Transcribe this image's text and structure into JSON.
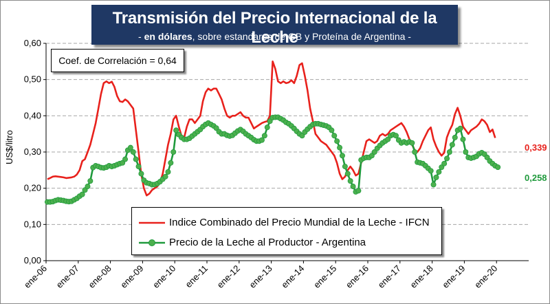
{
  "header": {
    "title": "Transmisión del Precio Internacional de la Leche",
    "subtitle_prefix": "- ",
    "subtitle_bold": "en dólares",
    "subtitle_rest": ", sobre estandares de GB y Proteína de  Argentina -"
  },
  "correlation_label": "Coef. de Correlación = 0,64",
  "colors": {
    "ifcn": "#e8211c",
    "argentina": "#1f9a3c",
    "argentina_marker": "#4cb04e",
    "title_bg": "#1f3864",
    "grid": "#a6a6a6"
  },
  "chart_data": {
    "type": "line",
    "title": "Transmisión del Precio Internacional de la Leche",
    "subtitle": "- en dólares, sobre estandares de GB y Proteína de  Argentina -",
    "xlabel": "",
    "ylabel": "US$/litro",
    "ylim": [
      0,
      0.6
    ],
    "yticks": [
      "0,00",
      "0,10",
      "0,20",
      "0,30",
      "0,40",
      "0,50",
      "0,60"
    ],
    "grid": true,
    "legend_position": "bottom-center",
    "x_start": "2006-01",
    "x_step": "monthly",
    "x_tick_labels": [
      "ene-06",
      "ene-07",
      "ene-08",
      "ene-09",
      "ene-10",
      "ene-11",
      "ene-12",
      "ene-13",
      "ene-14",
      "ene-15",
      "ene-16",
      "ene-17",
      "ene-18",
      "ene-19",
      "ene-20"
    ],
    "series": [
      {
        "name": "Indice Combinado del Precio Mundial de la Leche - IFCN",
        "color": "#e8211c",
        "marker": "none",
        "end_label": "0,339",
        "values": [
          0.225,
          0.228,
          0.232,
          0.233,
          0.232,
          0.231,
          0.23,
          0.228,
          0.229,
          0.23,
          0.232,
          0.238,
          0.25,
          0.275,
          0.28,
          0.3,
          0.32,
          0.35,
          0.38,
          0.42,
          0.46,
          0.49,
          0.495,
          0.49,
          0.494,
          0.48,
          0.455,
          0.44,
          0.438,
          0.445,
          0.44,
          0.43,
          0.42,
          0.36,
          0.3,
          0.24,
          0.2,
          0.18,
          0.185,
          0.195,
          0.2,
          0.205,
          0.215,
          0.24,
          0.28,
          0.32,
          0.35,
          0.39,
          0.4,
          0.37,
          0.345,
          0.34,
          0.37,
          0.39,
          0.39,
          0.38,
          0.39,
          0.4,
          0.44,
          0.465,
          0.475,
          0.47,
          0.475,
          0.475,
          0.46,
          0.445,
          0.42,
          0.4,
          0.395,
          0.4,
          0.4,
          0.405,
          0.41,
          0.4,
          0.395,
          0.395,
          0.38,
          0.365,
          0.37,
          0.375,
          0.38,
          0.383,
          0.385,
          0.4,
          0.55,
          0.53,
          0.495,
          0.49,
          0.495,
          0.49,
          0.492,
          0.498,
          0.49,
          0.51,
          0.54,
          0.545,
          0.51,
          0.47,
          0.42,
          0.385,
          0.35,
          0.34,
          0.33,
          0.325,
          0.32,
          0.31,
          0.3,
          0.29,
          0.27,
          0.24,
          0.225,
          0.232,
          0.25,
          0.26,
          0.25,
          0.235,
          0.24,
          0.27,
          0.3,
          0.33,
          0.335,
          0.33,
          0.325,
          0.33,
          0.345,
          0.35,
          0.345,
          0.35,
          0.36,
          0.365,
          0.37,
          0.375,
          0.38,
          0.37,
          0.355,
          0.335,
          0.32,
          0.305,
          0.3,
          0.31,
          0.33,
          0.345,
          0.36,
          0.368,
          0.335,
          0.315,
          0.3,
          0.29,
          0.298,
          0.34,
          0.36,
          0.375,
          0.405,
          0.422,
          0.4,
          0.37,
          0.36,
          0.35,
          0.36,
          0.365,
          0.37,
          0.378,
          0.39,
          0.385,
          0.375,
          0.355,
          0.362,
          0.339
        ]
      },
      {
        "name": "Precio de la Leche al Productor - Argentina",
        "color": "#1f9a3c",
        "marker": "circle",
        "end_label": "0,258",
        "values": [
          0.162,
          0.162,
          0.163,
          0.166,
          0.168,
          0.167,
          0.166,
          0.164,
          0.163,
          0.164,
          0.168,
          0.172,
          0.178,
          0.183,
          0.195,
          0.205,
          0.22,
          0.257,
          0.262,
          0.26,
          0.257,
          0.256,
          0.258,
          0.262,
          0.26,
          0.262,
          0.265,
          0.268,
          0.27,
          0.28,
          0.305,
          0.312,
          0.3,
          0.28,
          0.26,
          0.24,
          0.222,
          0.215,
          0.213,
          0.21,
          0.21,
          0.213,
          0.218,
          0.225,
          0.232,
          0.245,
          0.27,
          0.3,
          0.36,
          0.348,
          0.34,
          0.335,
          0.335,
          0.338,
          0.344,
          0.35,
          0.356,
          0.362,
          0.37,
          0.376,
          0.38,
          0.376,
          0.372,
          0.366,
          0.356,
          0.35,
          0.35,
          0.346,
          0.344,
          0.346,
          0.352,
          0.358,
          0.362,
          0.357,
          0.35,
          0.345,
          0.34,
          0.334,
          0.33,
          0.33,
          0.333,
          0.345,
          0.368,
          0.385,
          0.395,
          0.396,
          0.396,
          0.392,
          0.388,
          0.382,
          0.378,
          0.372,
          0.365,
          0.357,
          0.35,
          0.345,
          0.355,
          0.363,
          0.37,
          0.376,
          0.378,
          0.378,
          0.376,
          0.374,
          0.372,
          0.368,
          0.36,
          0.345,
          0.33,
          0.312,
          0.29,
          0.26,
          0.24,
          0.22,
          0.205,
          0.19,
          0.193,
          0.278,
          0.283,
          0.285,
          0.285,
          0.29,
          0.3,
          0.31,
          0.318,
          0.325,
          0.33,
          0.335,
          0.345,
          0.348,
          0.345,
          0.333,
          0.325,
          0.328,
          0.325,
          0.328,
          0.325,
          0.3,
          0.272,
          0.27,
          0.268,
          0.262,
          0.255,
          0.248,
          0.21,
          0.23,
          0.245,
          0.258,
          0.268,
          0.282,
          0.3,
          0.32,
          0.34,
          0.36,
          0.365,
          0.335,
          0.3,
          0.285,
          0.283,
          0.285,
          0.288,
          0.295,
          0.298,
          0.294,
          0.285,
          0.275,
          0.268,
          0.262,
          0.258
        ]
      }
    ]
  }
}
